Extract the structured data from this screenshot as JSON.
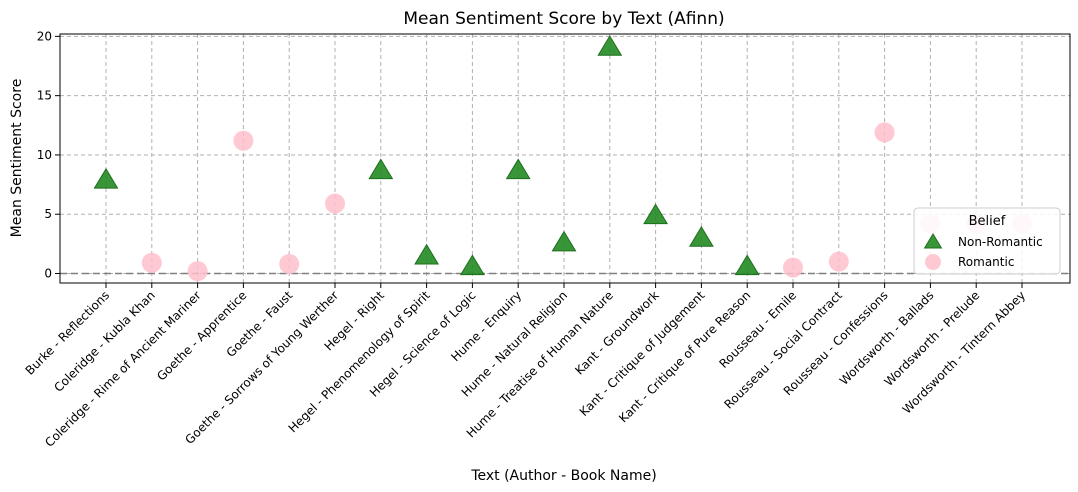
{
  "chart_data": {
    "type": "scatter",
    "title": "Mean Sentiment Score by Text (Afinn)",
    "xlabel": "Text (Author - Book Name)",
    "ylabel": "Mean Sentiment Score",
    "categories": [
      "Burke - Reflections",
      "Coleridge - Kubla Khan",
      "Coleridge - Rime of Ancient Mariner",
      "Goethe - Apprentice",
      "Goethe - Faust",
      "Goethe - Sorrows of Young Werther",
      "Hegel - Right",
      "Hegel - Phenomenology of Spirit",
      "Hegel - Science of Logic",
      "Hume - Enquiry",
      "Hume - Natural Religion",
      "Hume - Treatise of Human Nature",
      "Kant - Groundwork",
      "Kant - Critique of Judgement",
      "Kant - Critique of Pure Reason",
      "Rousseau - Emile",
      "Rousseau - Social Contract",
      "Rousseau - Confessions",
      "Wordsworth - Ballads",
      "Wordsworth - Prelude",
      "Wordsworth - Tintern Abbey"
    ],
    "ylim": [
      -0.8,
      20.2
    ],
    "yticks": [
      0,
      5,
      10,
      15,
      20
    ],
    "grid": true,
    "reference_line_y": 0,
    "legend": {
      "title": "Belief",
      "position": "right"
    },
    "series": [
      {
        "name": "Non-Romantic",
        "marker": "triangle",
        "color": "#228B22",
        "points": [
          {
            "category": "Burke - Reflections",
            "y": 7.9
          },
          {
            "category": "Hegel - Right",
            "y": 8.7
          },
          {
            "category": "Hegel - Phenomenology of Spirit",
            "y": 1.5
          },
          {
            "category": "Hegel - Science of Logic",
            "y": 0.6
          },
          {
            "category": "Hume - Enquiry",
            "y": 8.7
          },
          {
            "category": "Hume - Natural Religion",
            "y": 2.6
          },
          {
            "category": "Hume - Treatise of Human Nature",
            "y": 19.1
          },
          {
            "category": "Kant - Groundwork",
            "y": 4.9
          },
          {
            "category": "Kant - Critique of Judgement",
            "y": 3.0
          },
          {
            "category": "Kant - Critique of Pure Reason",
            "y": 0.6
          }
        ]
      },
      {
        "name": "Romantic",
        "marker": "circle",
        "color": "#FFC0CB",
        "points": [
          {
            "category": "Coleridge - Kubla Khan",
            "y": 0.9
          },
          {
            "category": "Coleridge - Rime of Ancient Mariner",
            "y": 0.2
          },
          {
            "category": "Goethe - Apprentice",
            "y": 11.2
          },
          {
            "category": "Goethe - Faust",
            "y": 0.8
          },
          {
            "category": "Goethe - Sorrows of Young Werther",
            "y": 5.9
          },
          {
            "category": "Rousseau - Emile",
            "y": 0.5
          },
          {
            "category": "Rousseau - Social Contract",
            "y": 1.0
          },
          {
            "category": "Rousseau - Confessions",
            "y": 11.9
          },
          {
            "category": "Wordsworth - Ballads",
            "y": 4.2
          },
          {
            "category": "Wordsworth - Prelude",
            "y": 4.2
          },
          {
            "category": "Wordsworth - Tintern Abbey",
            "y": 4.2
          }
        ]
      }
    ]
  }
}
